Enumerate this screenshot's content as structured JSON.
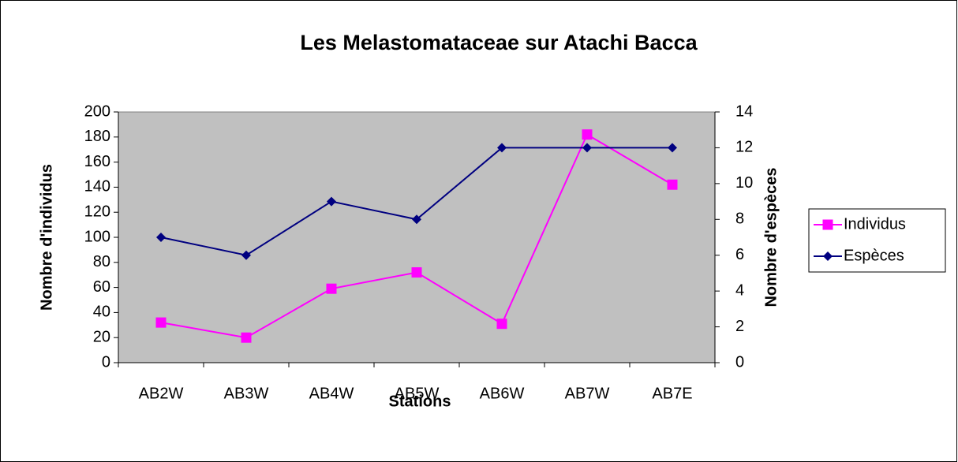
{
  "chart_data": {
    "type": "line",
    "title": "Les Melastomataceae sur Atachi Bacca",
    "x_label": "Stations",
    "y_label": "Nombre d'individus",
    "y2_label": "Nombre d'espèces",
    "categories": [
      "AB2W",
      "AB3W",
      "AB4W",
      "AB5W",
      "AB6W",
      "AB7W",
      "AB7E"
    ],
    "series": [
      {
        "name": "Individus",
        "color": "#ff00ff",
        "marker": "square",
        "values": [
          32,
          20,
          59,
          72,
          31,
          182,
          142
        ]
      },
      {
        "name": "Espèces",
        "color": "#000080",
        "marker": "diamond",
        "axis": "y2",
        "values": [
          7,
          6,
          9,
          8,
          12,
          12,
          12
        ]
      }
    ],
    "ylim": [
      0,
      200
    ],
    "yticks": [
      0,
      20,
      40,
      60,
      80,
      100,
      120,
      140,
      160,
      180,
      200
    ],
    "y2lim": [
      0,
      14
    ],
    "y2ticks": [
      0,
      2,
      4,
      6,
      8,
      10,
      12,
      14
    ],
    "grid": false,
    "plot_background": "#c0c0c0",
    "legend_position": "right"
  }
}
